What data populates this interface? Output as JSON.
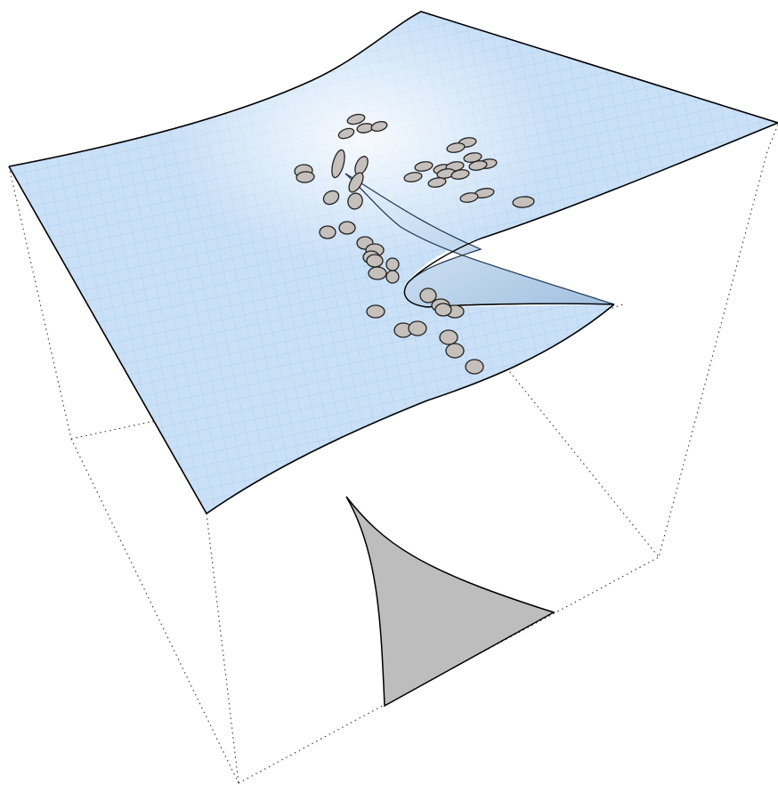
{
  "figure": {
    "kind": "3d-cusp-catastrophe-surface",
    "colors": {
      "surface_fill": "#c9e0f7",
      "surface_grid": "#9dbfe3",
      "surface_edge": "#000000",
      "point_fill": "#c5c0bb",
      "point_stroke": "#222222",
      "cusp_region_fill": "#bdbdbd",
      "box_dots": "#333333",
      "fold_shade": "#8fb4d9"
    },
    "data_points_count": 52
  }
}
